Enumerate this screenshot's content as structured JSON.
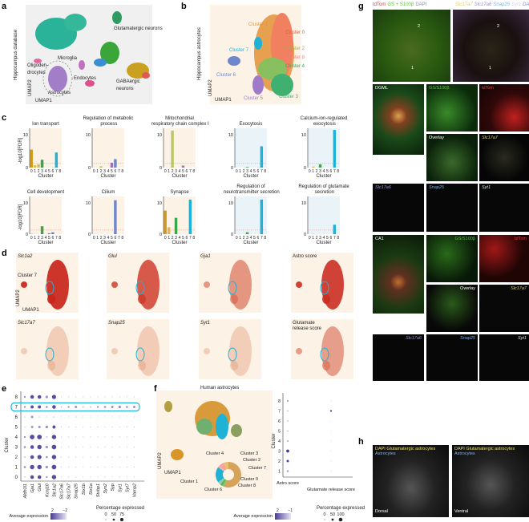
{
  "panels": {
    "a": "a",
    "b": "b",
    "c": "c",
    "d": "d",
    "e": "e",
    "f": "f",
    "g": "g",
    "h": "h"
  },
  "a": {
    "side": "Hippocampus database",
    "labels": [
      "Glutamatergic neurons",
      "Microglia",
      "Oligoden-",
      "drocytes",
      "Endocytes",
      "GABAergic",
      "neurons",
      "Astrocytes"
    ],
    "umap1": "UMAP1",
    "umap2": "UMAP2"
  },
  "b": {
    "side": "Hippocampus astrocytes",
    "clusters": [
      "Cluster 1",
      "Cluster 0",
      "Cluster 2",
      "Cluster 8",
      "Cluster 4",
      "Cluster 3",
      "Cluster 5",
      "Cluster 6",
      "Cluster 7"
    ],
    "umap1": "UMAP1",
    "umap2": "UMAP2"
  },
  "chart_data": [
    {
      "type": "bar",
      "title": "Ion transport",
      "xlabel": "Cluster",
      "ylabel": "-log10[FDR]",
      "categories": [
        "0",
        "1",
        "2",
        "3",
        "4",
        "5",
        "6",
        "7",
        "8"
      ],
      "values": [
        5.5,
        0.7,
        1,
        2.4,
        0,
        0,
        0,
        4.6,
        0
      ],
      "ylim": [
        0,
        12
      ],
      "threshold": 1.3,
      "theme": "warm"
    },
    {
      "type": "bar",
      "title": "Regulation of metabolic process",
      "xlabel": "Cluster",
      "ylabel": "",
      "categories": [
        "0",
        "1",
        "2",
        "3",
        "4",
        "5",
        "6",
        "7",
        "8"
      ],
      "values": [
        0,
        0,
        0.4,
        0,
        0,
        1.5,
        2.6,
        0,
        0
      ],
      "ylim": [
        0,
        12
      ],
      "threshold": 1.3,
      "theme": "warm"
    },
    {
      "type": "bar",
      "title": "Mitochondrial respiratory chain complex I",
      "xlabel": "Cluster",
      "ylabel": "",
      "categories": [
        "0",
        "1",
        "2",
        "3",
        "4",
        "5",
        "6",
        "7",
        "8"
      ],
      "values": [
        0,
        0,
        11.3,
        0,
        0,
        0.6,
        0,
        0,
        0
      ],
      "ylim": [
        0,
        12
      ],
      "threshold": 1.3,
      "theme": "warm"
    },
    {
      "type": "bar",
      "title": "Exocytosis",
      "xlabel": "Cluster",
      "ylabel": "",
      "categories": [
        "0",
        "1",
        "2",
        "3",
        "4",
        "5",
        "6",
        "7",
        "8"
      ],
      "values": [
        0,
        0,
        0,
        0.2,
        0,
        0,
        0,
        6.5,
        0
      ],
      "ylim": [
        0,
        12
      ],
      "threshold": 1.3,
      "theme": "cool"
    },
    {
      "type": "bar",
      "title": "Calcium-ion-regulated exocytosis",
      "xlabel": "Cluster",
      "ylabel": "",
      "categories": [
        "0",
        "1",
        "2",
        "3",
        "4",
        "5",
        "6",
        "7",
        "8"
      ],
      "values": [
        0,
        0.3,
        0,
        1,
        0,
        0,
        0,
        11.5,
        0
      ],
      "ylim": [
        0,
        12
      ],
      "threshold": 1.3,
      "theme": "cool"
    },
    {
      "type": "bar",
      "title": "Cell development",
      "xlabel": "Cluster",
      "ylabel": "-log10[FDR]",
      "categories": [
        "0",
        "1",
        "2",
        "3",
        "4",
        "5",
        "6",
        "7",
        "8"
      ],
      "values": [
        0.1,
        0,
        0,
        2.5,
        0,
        0.3,
        0.6,
        0,
        0
      ],
      "ylim": [
        0,
        12
      ],
      "threshold": 1.3,
      "theme": "warm"
    },
    {
      "type": "bar",
      "title": "Cilium",
      "xlabel": "Cluster",
      "ylabel": "",
      "categories": [
        "0",
        "1",
        "2",
        "3",
        "4",
        "5",
        "6",
        "7",
        "8"
      ],
      "values": [
        0,
        0,
        0,
        0,
        0,
        0,
        10.8,
        0,
        0
      ],
      "ylim": [
        0,
        12
      ],
      "threshold": 1.3,
      "theme": "warm"
    },
    {
      "type": "bar",
      "title": "Synapse",
      "xlabel": "Cluster",
      "ylabel": "",
      "categories": [
        "0",
        "1",
        "2",
        "3",
        "4",
        "5",
        "6",
        "7",
        "8"
      ],
      "values": [
        7.5,
        2.2,
        0,
        5.2,
        0,
        0,
        0,
        11,
        0
      ],
      "ylim": [
        0,
        12
      ],
      "threshold": 1.3,
      "theme": "warm"
    },
    {
      "type": "bar",
      "title": "Regulation of neurotransmitter secretion",
      "xlabel": "Cluster",
      "ylabel": "",
      "categories": [
        "0",
        "1",
        "2",
        "3",
        "4",
        "5",
        "6",
        "7",
        "8"
      ],
      "values": [
        0,
        0,
        0,
        0.6,
        0,
        0,
        0,
        11,
        0
      ],
      "ylim": [
        0,
        12
      ],
      "threshold": 1.3,
      "theme": "cool"
    },
    {
      "type": "bar",
      "title": "Regulation of glutamate secretion",
      "xlabel": "Cluster",
      "ylabel": "",
      "categories": [
        "0",
        "1",
        "2",
        "3",
        "4",
        "5",
        "6",
        "7",
        "8"
      ],
      "values": [
        0,
        0.1,
        0,
        0,
        0,
        0,
        0,
        3,
        0
      ],
      "ylim": [
        0,
        12
      ],
      "threshold": 1.3,
      "theme": "cool"
    }
  ],
  "colors": {
    "clusters": [
      "#d49a17",
      "#e7b54a",
      "#b9c86a",
      "#3aa64a",
      "#2f9c6e",
      "#a06fbf",
      "#6f88cc",
      "#1fb2d6",
      "#999999"
    ],
    "warm_bg": "#fdf2e6",
    "cool_bg": "#eaf4f8",
    "highlight": "#1fb2d6"
  },
  "d": {
    "panels": [
      "Slc1a2",
      "Glul",
      "Gja1",
      "Astro score",
      "Slc17a7",
      "Snap25",
      "Syt1",
      "Glutamate release score"
    ],
    "intensity": [
      0.95,
      0.8,
      0.5,
      0.9,
      0.1,
      0.12,
      0.1,
      0.45
    ],
    "cluster7": "Cluster 7",
    "umap1": "UMAP1",
    "umap2": "UMAP2"
  },
  "e": {
    "ylabel": "Cluster",
    "clusters": [
      "8",
      "7",
      "6",
      "5",
      "4",
      "3",
      "2",
      "1",
      "0"
    ],
    "genes": [
      "Aldh1l1",
      "Gja1",
      "Glul",
      "Kcnj10",
      "Slc1a2",
      "Slc17a6",
      "Slc17a7",
      "Snap25",
      "Stx1b",
      "Stx1a",
      "Stxbp1",
      "Syn2",
      "Syp",
      "Syt1",
      "Syt7",
      "Vamp2"
    ],
    "pct": [
      [
        20,
        55,
        55,
        35,
        65,
        2,
        2,
        5,
        2,
        2,
        2,
        2,
        2,
        3,
        2,
        2
      ],
      [
        20,
        45,
        45,
        25,
        55,
        10,
        20,
        30,
        15,
        15,
        20,
        25,
        30,
        35,
        25,
        30
      ],
      [
        5,
        30,
        8,
        4,
        10,
        2,
        2,
        8,
        2,
        2,
        2,
        2,
        2,
        2,
        2,
        2
      ],
      [
        5,
        30,
        30,
        35,
        45,
        2,
        2,
        4,
        2,
        2,
        2,
        2,
        2,
        2,
        2,
        2
      ],
      [
        20,
        75,
        75,
        15,
        70,
        2,
        2,
        3,
        2,
        2,
        2,
        2,
        2,
        2,
        2,
        2
      ],
      [
        25,
        55,
        70,
        35,
        75,
        2,
        2,
        3,
        2,
        2,
        2,
        2,
        2,
        2,
        2,
        2
      ],
      [
        15,
        55,
        65,
        25,
        70,
        2,
        2,
        3,
        2,
        2,
        2,
        2,
        2,
        2,
        2,
        2
      ],
      [
        25,
        70,
        70,
        35,
        75,
        2,
        2,
        3,
        2,
        2,
        2,
        2,
        2,
        2,
        2,
        2
      ],
      [
        10,
        55,
        55,
        20,
        70,
        2,
        2,
        3,
        2,
        2,
        2,
        2,
        2,
        2,
        2,
        2
      ]
    ],
    "legend_expr": "Average expression",
    "expr_hi": "2",
    "expr_lo": "−2",
    "legend_pct": "Percentage expressed",
    "pct_ticks": [
      "0",
      "50",
      "75"
    ]
  },
  "f": {
    "title": "Human astrocytes",
    "umap1": "UMAP1",
    "umap2": "UMAP2",
    "donut": [
      {
        "label": "Cluster 1",
        "value": 55,
        "color": "#d5a35a"
      },
      {
        "label": "Cluster 4",
        "value": 3,
        "color": "#8cbf6a"
      },
      {
        "label": "Cluster 3",
        "value": 3,
        "color": "#4fb35a"
      },
      {
        "label": "Cluster 2",
        "value": 4,
        "color": "#8fd0a0"
      },
      {
        "label": "Cluster 7",
        "value": 20,
        "color": "#1fb2d6"
      },
      {
        "label": "Cluster 0",
        "value": 3,
        "color": "#f2b0a0"
      },
      {
        "label": "Cluster 8",
        "value": 6,
        "color": "#f5a3a3"
      },
      {
        "label": "Cluster 6",
        "value": 6,
        "color": "#e8c070"
      }
    ],
    "dot_ylabel": "Cluster",
    "dot_clusters": [
      "8",
      "7",
      "6",
      "5",
      "4",
      "3",
      "2",
      "1"
    ],
    "dot_x": [
      "Astro score",
      "Glutamate release score"
    ],
    "astro": [
      0.4,
      0.15,
      0.15,
      0.15,
      0.3,
      0.9,
      0.6,
      0.5
    ],
    "glut": [
      0.05,
      0.5,
      0.05,
      0.05,
      0.05,
      0.05,
      0.05,
      0.05
    ],
    "legend_expr": "Average expression",
    "expr_hi": "2",
    "expr_lo": "−1",
    "legend_pct": "Percentage expressed",
    "pct_ticks": [
      "0",
      "50",
      "100"
    ]
  },
  "g": {
    "legend_left": [
      "tdTom",
      "GS + S100β",
      "DAPI"
    ],
    "legend_right": [
      "Slc17a7",
      "Slc17a6",
      "Snap25",
      "Syt1",
      "DAPI"
    ],
    "box1": "1",
    "box2": "2",
    "row1": [
      "DGML",
      "GS/S100β",
      "tdTom"
    ],
    "overlay": "Overlay",
    "slc17a7": "Slc17a7",
    "row3": [
      "Slc17a6",
      "Snap25",
      "Syt1"
    ],
    "ca1": "CA1",
    "ca_row": [
      "GS/S100β",
      "tdTom"
    ]
  },
  "h": {
    "left": "DAPI Glutamatergic astrocytes",
    "left2": "Astrocytes",
    "right": "DAPI Glutamatergic astrocytes",
    "right2": "Astrocytes",
    "dorsal": "Dorsal",
    "ventral": "Ventral"
  }
}
